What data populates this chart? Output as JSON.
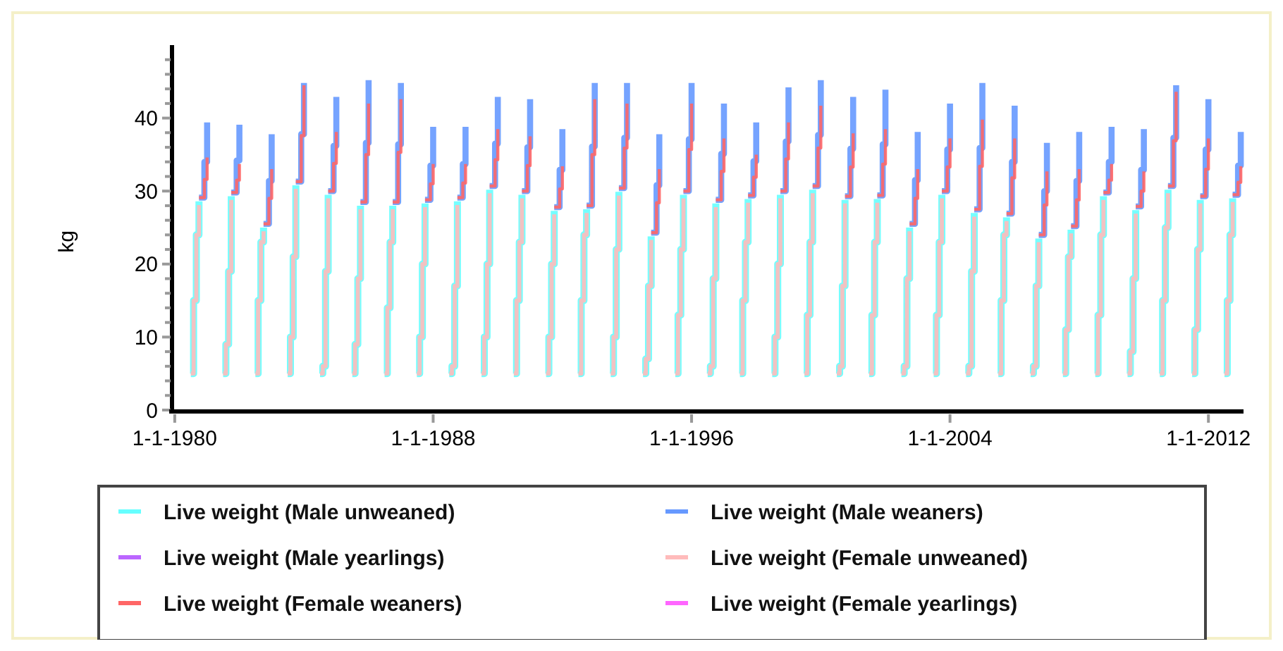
{
  "chart_data": {
    "type": "step",
    "ylabel": "kg",
    "xlim": [
      "1979-12-01",
      "2013-02-01"
    ],
    "ylim": [
      0,
      50
    ],
    "xticks": [
      {
        "value": "1980-01-01",
        "label": "1-1-1980"
      },
      {
        "value": "1988-01-01",
        "label": "1-1-1988"
      },
      {
        "value": "1996-01-01",
        "label": "1-1-1996"
      },
      {
        "value": "2004-01-01",
        "label": "1-1-2004"
      },
      {
        "value": "2012-01-01",
        "label": "1-1-2012"
      }
    ],
    "yticks": [
      0,
      {
        "value": 2,
        "label": null
      },
      {
        "value": 4,
        "label": null
      },
      {
        "value": 6,
        "label": null
      },
      {
        "value": 8,
        "label": null
      },
      10,
      {
        "value": 12,
        "label": null
      },
      {
        "value": 14,
        "label": null
      },
      {
        "value": 16,
        "label": null
      },
      {
        "value": 18,
        "label": null
      },
      20,
      {
        "value": 22,
        "label": null
      },
      {
        "value": 24,
        "label": null
      },
      {
        "value": 26,
        "label": null
      },
      {
        "value": 28,
        "label": null
      },
      30,
      {
        "value": 32,
        "label": null
      },
      {
        "value": 34,
        "label": null
      },
      {
        "value": 36,
        "label": null
      },
      {
        "value": 38,
        "label": null
      },
      40,
      {
        "value": 42,
        "label": null
      },
      {
        "value": 44,
        "label": null
      },
      {
        "value": 46,
        "label": null
      },
      {
        "value": 48,
        "label": null
      }
    ],
    "grid": false,
    "legend": "bottom",
    "marker": "none",
    "line_style": "solid",
    "series": [
      {
        "name": "Live weight (Male unweaned)",
        "color": "#66ffff",
        "x": [
          "1980-07",
          "1980-08",
          "1980-09",
          "1980-10",
          "1980-11",
          "1981-07",
          "1981-08",
          "1981-09",
          "1981-10",
          "1981-11",
          "1982-07",
          "1982-08",
          "1982-09",
          "1982-10",
          "1982-11",
          "1983-07",
          "1983-08",
          "1983-09",
          "1983-10",
          "1983-11",
          "1984-07",
          "1984-08",
          "1984-09",
          "1984-10",
          "1984-11",
          "1985-07",
          "1985-08",
          "1985-09",
          "1985-10",
          "1985-11",
          "1986-07",
          "1986-08",
          "1986-09",
          "1986-10",
          "1986-11",
          "1987-07",
          "1987-08",
          "1987-09",
          "1987-10",
          "1987-11",
          "1988-07",
          "1988-08",
          "1988-09",
          "1988-10",
          "1988-11",
          "1989-07",
          "1989-08",
          "1989-09",
          "1989-10",
          "1989-11",
          "1990-07",
          "1990-08",
          "1990-09",
          "1990-10",
          "1990-11",
          "1991-07",
          "1991-08",
          "1991-09",
          "1991-10",
          "1991-11",
          "1992-07",
          "1992-08",
          "1992-09",
          "1992-10",
          "1992-11",
          "1993-07",
          "1993-08",
          "1993-09",
          "1993-10",
          "1993-11",
          "1994-07",
          "1994-08",
          "1994-09",
          "1994-10",
          "1994-11",
          "1995-07",
          "1995-08",
          "1995-09",
          "1995-10",
          "1995-11",
          "1996-07",
          "1996-08",
          "1996-09",
          "1996-10",
          "1996-11",
          "1997-07",
          "1997-08",
          "1997-09",
          "1997-10",
          "1997-11",
          "1998-07",
          "1998-08",
          "1998-09",
          "1998-10",
          "1998-11",
          "1999-07",
          "1999-08",
          "1999-09",
          "1999-10",
          "1999-11",
          "2000-07",
          "2000-08",
          "2000-09",
          "2000-10",
          "2000-11",
          "2001-07",
          "2001-08",
          "2001-09",
          "2001-10",
          "2001-11",
          "2002-07",
          "2002-08",
          "2002-09",
          "2002-10",
          "2002-11",
          "2003-07",
          "2003-08",
          "2003-09",
          "2003-10",
          "2003-11",
          "2004-07",
          "2004-08",
          "2004-09",
          "2004-10",
          "2004-11",
          "2005-07",
          "2005-08",
          "2005-09",
          "2005-10",
          "2005-11",
          "2006-07",
          "2006-08",
          "2006-09",
          "2006-10",
          "2006-11",
          "2007-07",
          "2007-08",
          "2007-09",
          "2007-10",
          "2007-11",
          "2008-07",
          "2008-08",
          "2008-09",
          "2008-10",
          "2008-11",
          "2009-07",
          "2009-08",
          "2009-09",
          "2009-10",
          "2009-11",
          "2010-07",
          "2010-08",
          "2010-09",
          "2010-10",
          "2010-11",
          "2011-07",
          "2011-08",
          "2011-09",
          "2011-10",
          "2011-11",
          "2012-07",
          "2012-08",
          "2012-09",
          "2012-10"
        ],
        "values": [
          5,
          15,
          24,
          28.6,
          null,
          5,
          9,
          19,
          29.3,
          null,
          5,
          15,
          23,
          25.0,
          null,
          5,
          10,
          21,
          30.8,
          null,
          5,
          6,
          19,
          29.5,
          null,
          5,
          9,
          18,
          28.0,
          null,
          5,
          14,
          23,
          28.0,
          null,
          5,
          10,
          20,
          28.3,
          null,
          5,
          6,
          17,
          28.6,
          null,
          5,
          10,
          20,
          30.2,
          null,
          5,
          15,
          23,
          29.5,
          null,
          5,
          10,
          20,
          27.3,
          null,
          5,
          15,
          24,
          27.5,
          null,
          5,
          10,
          22,
          29.9,
          null,
          5,
          7,
          17,
          23.8,
          null,
          5,
          13,
          22,
          29.5,
          null,
          5,
          6,
          18,
          28.3,
          null,
          5,
          15,
          23,
          28.9,
          null,
          5,
          10,
          20,
          29.5,
          null,
          5,
          13,
          23,
          30.2,
          null,
          5,
          6,
          17,
          28.8,
          null,
          5,
          13,
          23,
          28.9,
          null,
          5,
          6,
          18,
          25.0,
          null,
          5,
          13,
          23,
          29.5,
          null,
          5,
          6,
          19,
          27.0,
          null,
          5,
          15,
          24,
          26.4,
          null,
          5,
          6,
          17,
          23.5,
          null,
          5,
          11,
          21,
          24.7,
          null,
          5,
          13,
          24,
          29.3,
          null,
          5,
          8,
          18,
          27.4,
          null,
          5,
          15,
          25,
          30.2,
          null,
          5,
          11,
          22,
          28.8,
          null,
          5,
          15,
          24,
          29.0
        ]
      },
      {
        "name": "Live weight (Male weaners)",
        "color": "#6699ff",
        "x": [
          "1980-10",
          "1980-12",
          "1981-01",
          "1981-02",
          "1981-10",
          "1981-12",
          "1982-01",
          "1982-02",
          "1982-10",
          "1982-12",
          "1983-01",
          "1983-02",
          "1983-10",
          "1983-12",
          "1984-01",
          "1984-02",
          "1984-10",
          "1984-12",
          "1985-01",
          "1985-02",
          "1985-10",
          "1985-12",
          "1986-01",
          "1986-02",
          "1986-10",
          "1986-12",
          "1987-01",
          "1987-02",
          "1987-10",
          "1987-12",
          "1988-01",
          "1988-02",
          "1988-10",
          "1988-12",
          "1989-01",
          "1989-02",
          "1989-10",
          "1989-12",
          "1990-01",
          "1990-02",
          "1990-10",
          "1990-12",
          "1991-01",
          "1991-02",
          "1991-10",
          "1991-12",
          "1992-01",
          "1992-02",
          "1992-10",
          "1992-12",
          "1993-01",
          "1993-02",
          "1993-10",
          "1993-12",
          "1994-01",
          "1994-02",
          "1994-10",
          "1994-12",
          "1995-01",
          "1995-02",
          "1995-10",
          "1995-12",
          "1996-01",
          "1996-02",
          "1996-10",
          "1996-12",
          "1997-01",
          "1997-02",
          "1997-10",
          "1997-12",
          "1998-01",
          "1998-02",
          "1998-10",
          "1998-12",
          "1999-01",
          "1999-02",
          "1999-10",
          "1999-12",
          "2000-01",
          "2000-02",
          "2000-10",
          "2000-12",
          "2001-01",
          "2001-02",
          "2001-10",
          "2001-12",
          "2002-01",
          "2002-02",
          "2002-10",
          "2002-12",
          "2003-01",
          "2003-02",
          "2003-10",
          "2003-12",
          "2004-01",
          "2004-02",
          "2004-10",
          "2004-12",
          "2005-01",
          "2005-02",
          "2005-10",
          "2005-12",
          "2006-01",
          "2006-02",
          "2006-10",
          "2006-12",
          "2007-01",
          "2007-02",
          "2007-10",
          "2007-12",
          "2008-01",
          "2008-02",
          "2008-10",
          "2008-12",
          "2009-01",
          "2009-02",
          "2009-10",
          "2009-12",
          "2010-01",
          "2010-02",
          "2010-10",
          "2010-12",
          "2011-01",
          "2011-02",
          "2011-10",
          "2011-12",
          "2012-01",
          "2012-02",
          "2012-10",
          "2012-12",
          "2013-01"
        ],
        "values": [
          29.1,
          34.0,
          39.4,
          null,
          29.8,
          34.2,
          39.1,
          null,
          25.5,
          31.4,
          37.8,
          null,
          31.3,
          37.8,
          44.8,
          null,
          30.0,
          36.2,
          42.9,
          null,
          28.5,
          36.6,
          45.2,
          null,
          28.5,
          36.4,
          44.8,
          null,
          28.8,
          33.5,
          38.8,
          null,
          29.1,
          33.7,
          38.8,
          null,
          30.7,
          36.5,
          42.9,
          null,
          30.0,
          36.0,
          42.6,
          null,
          27.8,
          32.9,
          38.5,
          null,
          28.0,
          36.1,
          44.8,
          null,
          30.4,
          37.3,
          44.8,
          null,
          24.3,
          30.8,
          37.8,
          null,
          30.0,
          37.1,
          44.8,
          null,
          28.8,
          35.1,
          42.0,
          null,
          29.4,
          34.1,
          39.4,
          null,
          30.0,
          36.8,
          44.2,
          null,
          30.7,
          37.7,
          45.2,
          null,
          29.3,
          35.8,
          42.9,
          null,
          29.4,
          36.4,
          43.9,
          null,
          25.5,
          31.5,
          38.1,
          null,
          30.0,
          35.7,
          42.0,
          null,
          27.5,
          35.9,
          44.8,
          null,
          26.9,
          34.0,
          41.7,
          null,
          24.0,
          30.0,
          36.6,
          null,
          25.2,
          31.4,
          38.1,
          null,
          29.8,
          34.0,
          38.8,
          null,
          27.9,
          32.9,
          38.5,
          null,
          30.7,
          37.3,
          44.5,
          null,
          29.3,
          35.7,
          42.6,
          null,
          29.5,
          33.5,
          38.1
        ]
      },
      {
        "name": "Live weight (Male yearlings)",
        "color": "#bb66ff"
      },
      {
        "name": "Live weight (Female unweaned)",
        "color": "#ffbbbb",
        "x": [
          "1980-07",
          "1980-08",
          "1980-09",
          "1980-10",
          "1980-11",
          "1981-07",
          "1981-08",
          "1981-09",
          "1981-10",
          "1981-11",
          "1982-07",
          "1982-08",
          "1982-09",
          "1982-10",
          "1982-11",
          "1983-07",
          "1983-08",
          "1983-09",
          "1983-10",
          "1983-11",
          "1984-07",
          "1984-08",
          "1984-09",
          "1984-10",
          "1984-11",
          "1985-07",
          "1985-08",
          "1985-09",
          "1985-10",
          "1985-11",
          "1986-07",
          "1986-08",
          "1986-09",
          "1986-10",
          "1986-11",
          "1987-07",
          "1987-08",
          "1987-09",
          "1987-10",
          "1987-11",
          "1988-07",
          "1988-08",
          "1988-09",
          "1988-10",
          "1988-11",
          "1989-07",
          "1989-08",
          "1989-09",
          "1989-10",
          "1989-11",
          "1990-07",
          "1990-08",
          "1990-09",
          "1990-10",
          "1990-11",
          "1991-07",
          "1991-08",
          "1991-09",
          "1991-10",
          "1991-11",
          "1992-07",
          "1992-08",
          "1992-09",
          "1992-10",
          "1992-11",
          "1993-07",
          "1993-08",
          "1993-09",
          "1993-10",
          "1993-11",
          "1994-07",
          "1994-08",
          "1994-09",
          "1994-10",
          "1994-11",
          "1995-07",
          "1995-08",
          "1995-09",
          "1995-10",
          "1995-11",
          "1996-07",
          "1996-08",
          "1996-09",
          "1996-10",
          "1996-11",
          "1997-07",
          "1997-08",
          "1997-09",
          "1997-10",
          "1997-11",
          "1998-07",
          "1998-08",
          "1998-09",
          "1998-10",
          "1998-11",
          "1999-07",
          "1999-08",
          "1999-09",
          "1999-10",
          "1999-11",
          "2000-07",
          "2000-08",
          "2000-09",
          "2000-10",
          "2000-11",
          "2001-07",
          "2001-08",
          "2001-09",
          "2001-10",
          "2001-11",
          "2002-07",
          "2002-08",
          "2002-09",
          "2002-10",
          "2002-11",
          "2003-07",
          "2003-08",
          "2003-09",
          "2003-10",
          "2003-11",
          "2004-07",
          "2004-08",
          "2004-09",
          "2004-10",
          "2004-11",
          "2005-07",
          "2005-08",
          "2005-09",
          "2005-10",
          "2005-11",
          "2006-07",
          "2006-08",
          "2006-09",
          "2006-10",
          "2006-11",
          "2007-07",
          "2007-08",
          "2007-09",
          "2007-10",
          "2007-11",
          "2008-07",
          "2008-08",
          "2008-09",
          "2008-10",
          "2008-11",
          "2009-07",
          "2009-08",
          "2009-09",
          "2009-10",
          "2009-11",
          "2010-07",
          "2010-08",
          "2010-09",
          "2010-10",
          "2010-11",
          "2011-07",
          "2011-08",
          "2011-09",
          "2011-10",
          "2011-11",
          "2012-07",
          "2012-08",
          "2012-09",
          "2012-10"
        ],
        "values": [
          5,
          15,
          24,
          28.1,
          null,
          5,
          9,
          19,
          28.8,
          null,
          5,
          15,
          23,
          24.5,
          null,
          5,
          10,
          21,
          30.3,
          null,
          5,
          6,
          19,
          29.0,
          null,
          5,
          9,
          18,
          27.5,
          null,
          5,
          14,
          23,
          27.5,
          null,
          5,
          10,
          20,
          27.8,
          null,
          5,
          6,
          17,
          28.1,
          null,
          5,
          10,
          20,
          29.7,
          null,
          5,
          15,
          23,
          29.0,
          null,
          5,
          10,
          20,
          26.8,
          null,
          5,
          15,
          24,
          27.0,
          null,
          5,
          10,
          22,
          29.4,
          null,
          5,
          7,
          17,
          23.3,
          null,
          5,
          13,
          22,
          29.0,
          null,
          5,
          6,
          18,
          27.8,
          null,
          5,
          15,
          23,
          28.4,
          null,
          5,
          10,
          20,
          29.0,
          null,
          5,
          13,
          23,
          29.7,
          null,
          5,
          6,
          17,
          28.3,
          null,
          5,
          13,
          23,
          28.4,
          null,
          5,
          6,
          18,
          24.5,
          null,
          5,
          13,
          23,
          29.0,
          null,
          5,
          6,
          19,
          26.5,
          null,
          5,
          15,
          24,
          25.9,
          null,
          5,
          6,
          17,
          23.0,
          null,
          5,
          11,
          21,
          24.2,
          null,
          5,
          13,
          24,
          28.8,
          null,
          5,
          8,
          18,
          26.9,
          null,
          5,
          15,
          25,
          29.7,
          null,
          5,
          11,
          22,
          28.3,
          null,
          5,
          15,
          24,
          28.5
        ]
      },
      {
        "name": "Live weight (Female weaners)",
        "color": "#ff6666",
        "x": [
          "1980-10",
          "1980-12",
          "1981-01",
          "1981-02",
          "1981-10",
          "1981-12",
          "1982-01",
          "1982-02",
          "1982-10",
          "1982-12",
          "1983-01",
          "1983-02",
          "1983-10",
          "1983-12",
          "1984-01",
          "1984-02",
          "1984-10",
          "1984-12",
          "1985-01",
          "1985-02",
          "1985-10",
          "1985-12",
          "1986-01",
          "1986-02",
          "1986-10",
          "1986-12",
          "1987-01",
          "1987-02",
          "1987-10",
          "1987-12",
          "1988-01",
          "1988-02",
          "1988-10",
          "1988-12",
          "1989-01",
          "1989-02",
          "1989-10",
          "1989-12",
          "1990-01",
          "1990-02",
          "1990-10",
          "1990-12",
          "1991-01",
          "1991-02",
          "1991-10",
          "1991-12",
          "1992-01",
          "1992-02",
          "1992-10",
          "1992-12",
          "1993-01",
          "1993-02",
          "1993-10",
          "1993-12",
          "1994-01",
          "1994-02",
          "1994-10",
          "1994-12",
          "1995-01",
          "1995-02",
          "1995-10",
          "1995-12",
          "1996-01",
          "1996-02",
          "1996-10",
          "1996-12",
          "1997-01",
          "1997-02",
          "1997-10",
          "1997-12",
          "1998-01",
          "1998-02",
          "1998-10",
          "1998-12",
          "1999-01",
          "1999-02",
          "1999-10",
          "1999-12",
          "2000-01",
          "2000-02",
          "2000-10",
          "2000-12",
          "2001-01",
          "2001-02",
          "2001-10",
          "2001-12",
          "2002-01",
          "2002-02",
          "2002-10",
          "2002-12",
          "2003-01",
          "2003-02",
          "2003-10",
          "2003-12",
          "2004-01",
          "2004-02",
          "2004-10",
          "2004-12",
          "2005-01",
          "2005-02",
          "2005-10",
          "2005-12",
          "2006-01",
          "2006-02",
          "2006-10",
          "2006-12",
          "2007-01",
          "2007-02",
          "2007-10",
          "2007-12",
          "2008-01",
          "2008-02",
          "2008-10",
          "2008-12",
          "2009-01",
          "2009-02",
          "2009-10",
          "2009-12",
          "2010-01",
          "2010-02",
          "2010-10",
          "2010-12",
          "2011-01",
          "2011-02",
          "2011-10",
          "2011-12",
          "2012-01",
          "2012-02",
          "2012-10",
          "2012-12",
          "2013-01"
        ],
        "values": [
          29.1,
          31.6,
          34.6,
          null,
          29.8,
          31.5,
          33.7,
          null,
          25.5,
          29.0,
          33.0,
          null,
          31.3,
          37.6,
          44.5,
          null,
          30.0,
          33.8,
          38.1,
          null,
          28.5,
          35.0,
          42.0,
          null,
          28.5,
          35.3,
          42.6,
          null,
          28.8,
          31.0,
          33.7,
          null,
          29.1,
          31.1,
          33.7,
          null,
          30.7,
          34.3,
          38.5,
          null,
          30.0,
          33.5,
          37.5,
          null,
          27.8,
          30.3,
          33.4,
          null,
          28.0,
          35.0,
          42.6,
          null,
          30.4,
          35.9,
          42.0,
          null,
          24.3,
          28.4,
          33.0,
          null,
          30.0,
          35.7,
          42.0,
          null,
          28.8,
          32.7,
          37.2,
          null,
          29.4,
          31.9,
          35.0,
          null,
          30.0,
          34.4,
          39.4,
          null,
          30.7,
          35.9,
          41.7,
          null,
          29.3,
          33.3,
          37.9,
          null,
          29.4,
          33.7,
          38.5,
          null,
          25.5,
          29.0,
          33.0,
          null,
          30.0,
          33.3,
          37.2,
          null,
          27.5,
          33.4,
          39.8,
          null,
          26.9,
          31.8,
          37.2,
          null,
          24.0,
          28.1,
          32.7,
          null,
          25.2,
          28.8,
          33.0,
          null,
          29.8,
          31.5,
          33.7,
          null,
          27.9,
          30.0,
          32.7,
          null,
          30.7,
          36.9,
          43.6,
          null,
          29.3,
          33.0,
          37.2,
          null,
          29.5,
          31.2,
          33.4
        ]
      },
      {
        "name": "Live weight (Female yearlings)",
        "color": "#ff66ff"
      }
    ]
  }
}
